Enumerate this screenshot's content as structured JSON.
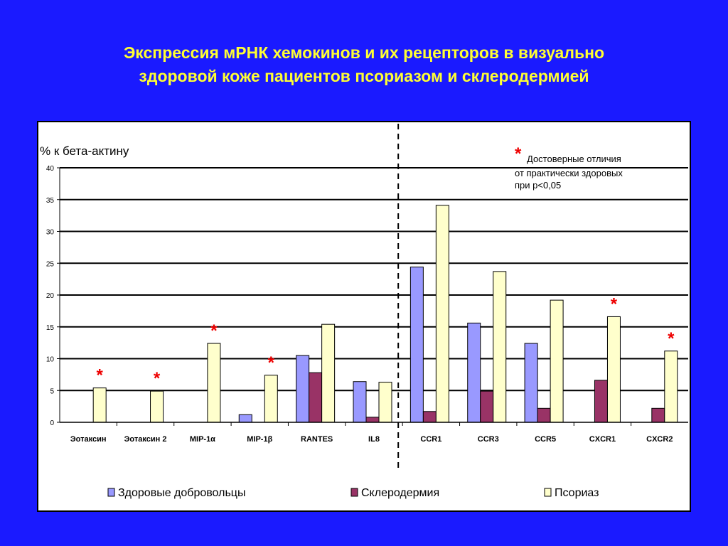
{
  "slide": {
    "title_line1": "Экспрессия мРНК хемокинов и их рецепторов в визуально",
    "title_line2": "здоровой коже пациентов псориазом и склеродермией"
  },
  "chart_data": {
    "type": "bar",
    "ylabel": "% к бета-актину",
    "ylim": [
      0,
      40
    ],
    "yticks": [
      0,
      5,
      10,
      15,
      20,
      25,
      30,
      35,
      40
    ],
    "grid": true,
    "legend_placement": "bottom",
    "categories": [
      "Эотаксин",
      "Эотаксин 2",
      "MIP-1α",
      "MIP-1β",
      "RANTES",
      "IL8",
      "CCR1",
      "CCR3",
      "CCR5",
      "CXCR1",
      "CXCR2"
    ],
    "series": [
      {
        "name": "Здоровые добровольцы",
        "color": "#9999ff",
        "values": [
          0,
          0,
          0,
          1.2,
          10.5,
          6.4,
          24.4,
          15.6,
          12.4,
          0,
          0
        ]
      },
      {
        "name": "Склеродермия",
        "color": "#993366",
        "values": [
          0,
          0,
          0,
          0,
          7.8,
          0.8,
          1.7,
          4.9,
          2.2,
          6.6,
          2.2
        ]
      },
      {
        "name": "Псориаз",
        "color": "#ffffcc",
        "values": [
          5.4,
          4.9,
          12.4,
          7.4,
          15.4,
          6.3,
          34.1,
          23.7,
          19.2,
          16.6,
          11.2
        ]
      }
    ],
    "significant": [
      "Эотаксин",
      "Эотаксин 2",
      "MIP-1α",
      "MIP-1β",
      "CXCR1",
      "CXCR2"
    ],
    "divider_after_category": "IL8",
    "annotation": {
      "star": "*",
      "line1": "Достоверные отличия",
      "line2": "от практически здоровых",
      "line3": "при  p<0,05"
    }
  }
}
